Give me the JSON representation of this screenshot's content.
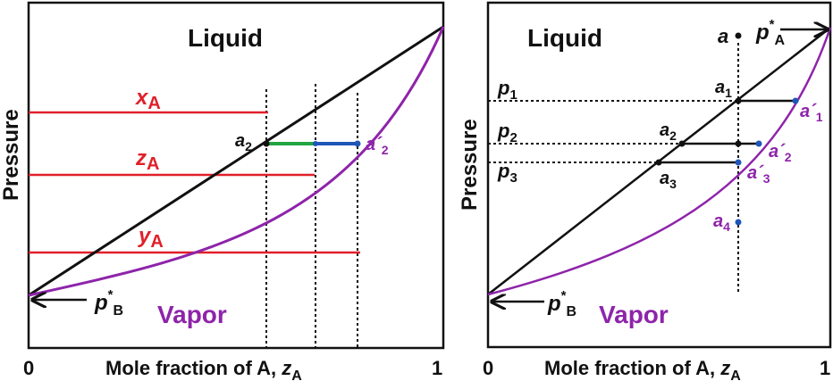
{
  "colors": {
    "liquid_line": "#111111",
    "vapor_curve": "#8e24aa",
    "red": "#e0202a",
    "green": "#22a540",
    "blue": "#1f56b8",
    "black": "#111111"
  },
  "left": {
    "region_liquid": "Liquid",
    "region_vapor": "Vapor",
    "ylabel": "Pressure",
    "xlabel_text": "Mole fraction of A,",
    "xlabel_var": "z",
    "xlabel_sub": "A",
    "tick_0": "0",
    "tick_1": "1",
    "pB_main": "p",
    "pB_sup": "*",
    "pB_sub": "B",
    "xA_main": "x",
    "xA_sub": "A",
    "zA_main": "z",
    "zA_sub": "A",
    "yA_main": "y",
    "yA_sub": "A",
    "a2_main": "a",
    "a2_sub": "2",
    "a2p_main": "a´",
    "a2p_sub": "2"
  },
  "right": {
    "region_liquid": "Liquid",
    "region_vapor": "Vapor",
    "ylabel": "Pressure",
    "xlabel_text": "Mole fraction of A,",
    "xlabel_var": "z",
    "xlabel_sub": "A",
    "tick_0": "0",
    "tick_1": "1",
    "pA_main": "p",
    "pA_sup": "*",
    "pA_sub": "A",
    "pB_main": "p",
    "pB_sup": "*",
    "pB_sub": "B",
    "a_main": "a",
    "p1_main": "p",
    "p1_sub": "1",
    "p2_main": "p",
    "p2_sub": "2",
    "p3_main": "p",
    "p3_sub": "3",
    "a1_main": "a",
    "a1_sub": "1",
    "a1p_main": "a´",
    "a1p_sub": "1",
    "a2_main": "a",
    "a2_sub": "2",
    "a2p_main": "a´",
    "a2p_sub": "2",
    "a3_main": "a",
    "a3_sub": "3",
    "a3p_main": "a´",
    "a3p_sub": "3",
    "a4_main": "a",
    "a4_sub": "4"
  }
}
